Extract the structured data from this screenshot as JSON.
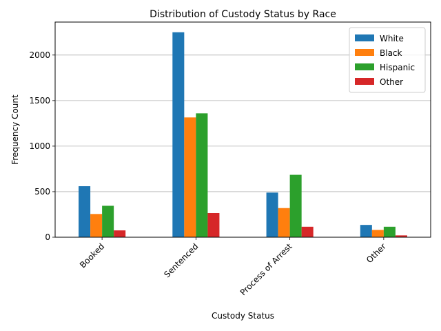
{
  "chart_data": {
    "type": "bar",
    "title": "Distribution of Custody Status by Race",
    "xlabel": "Custody Status",
    "ylabel": "Frequency Count",
    "categories": [
      "Booked",
      "Sentenced",
      "Process of Arrest",
      "Other"
    ],
    "series": [
      {
        "name": "White",
        "values": [
          560,
          2250,
          490,
          135
        ],
        "color": "#1f77b4"
      },
      {
        "name": "Black",
        "values": [
          255,
          1315,
          320,
          80
        ],
        "color": "#ff7f0e"
      },
      {
        "name": "Hispanic",
        "values": [
          345,
          1360,
          685,
          115
        ],
        "color": "#2ca02c"
      },
      {
        "name": "Other",
        "values": [
          75,
          265,
          115,
          20
        ],
        "color": "#d62728"
      }
    ],
    "ylim": [
      0,
      2362
    ],
    "yticks": [
      0,
      500,
      1000,
      1500,
      2000
    ],
    "grid": "y",
    "legend_position": "top-right",
    "xtick_rotation": 45
  }
}
